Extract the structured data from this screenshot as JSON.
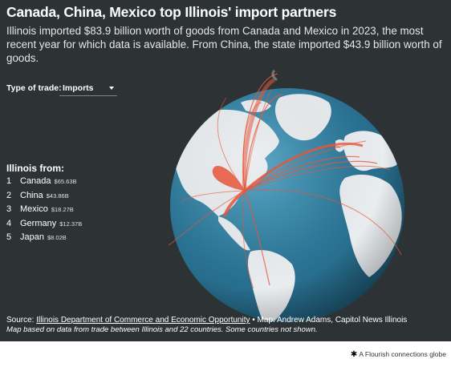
{
  "header": {
    "title": "Canada, China, Mexico top Illinois' import partners",
    "subtitle": "Illinois imported $83.9 billion worth of goods from Canada and Mexico in 2023, the most recent year for which data is available. From China, the state imported $43.9 billion worth of goods."
  },
  "controls": {
    "trade_type_label": "Type of trade:",
    "trade_type_value": "Imports"
  },
  "ranking": {
    "heading": "Illinois from:",
    "items": [
      {
        "rank": "1",
        "country": "Canada",
        "value": "$65.63B"
      },
      {
        "rank": "2",
        "country": "China",
        "value": "$43.86B"
      },
      {
        "rank": "3",
        "country": "Mexico",
        "value": "$18.27B"
      },
      {
        "rank": "4",
        "country": "Germany",
        "value": "$12.37B"
      },
      {
        "rank": "5",
        "country": "Japan",
        "value": "$8.02B"
      }
    ]
  },
  "footer": {
    "source_prefix": "Source:",
    "source_link": "Illinois Department of Commerce and Economic Opportunity",
    "map_credit": "• Map: Andrew Adams, Capitol News Illinois",
    "note": "Map based on data from trade between Illinois and 22 countries. Some countries not shown.",
    "flourish_credit": "A Flourish connections globe"
  },
  "colors": {
    "background": "#2d3235",
    "ocean": "#2f7a9c",
    "land": "#e8ecee",
    "arc": "#e8553a"
  },
  "icons": {
    "flourish_logo": "asterisk-icon"
  }
}
